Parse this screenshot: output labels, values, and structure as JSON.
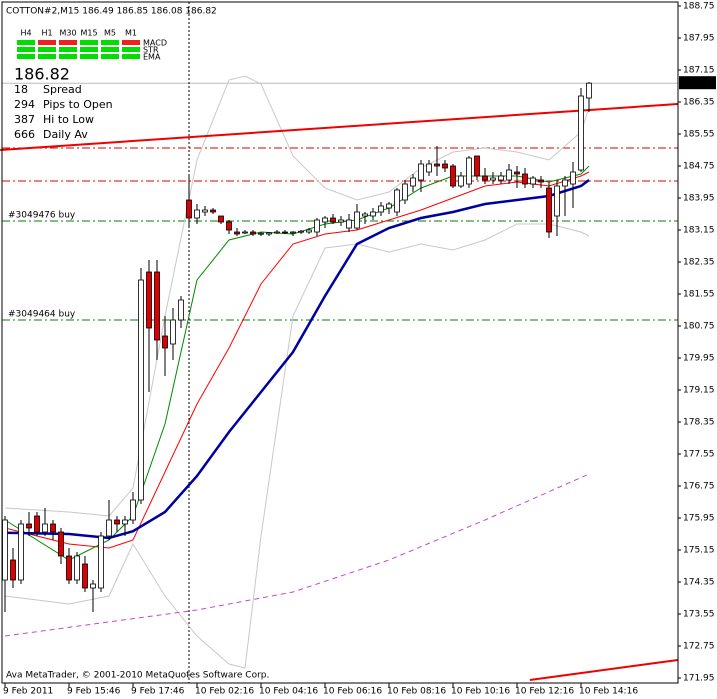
{
  "chart_data": {
    "type": "candlestick",
    "title": "COTTON#2,M15  186.49 186.85 186.08 186.82",
    "footer": "Ava MetaTrader, © 2001-2010 MetaQuotes Software Corp.",
    "categories": [
      "9 Feb 2011",
      null,
      null,
      null,
      null,
      null,
      null,
      null,
      "9 Feb 15:46",
      null,
      null,
      null,
      null,
      null,
      null,
      null,
      "9 Feb 17:46",
      null,
      null,
      null,
      null,
      null,
      null,
      null,
      "10 Feb 02:16",
      null,
      null,
      null,
      null,
      null,
      null,
      null,
      "10 Feb 04:16",
      null,
      null,
      null,
      null,
      null,
      null,
      null,
      "10 Feb 06:16",
      null,
      null,
      null,
      null,
      null,
      null,
      null,
      "10 Feb 08:16",
      null,
      null,
      null,
      null,
      null,
      null,
      null,
      "10 Feb 10:16",
      null,
      null,
      null,
      null,
      null,
      null,
      null,
      "10 Feb 12:16",
      null,
      null,
      null,
      null,
      null,
      null,
      null,
      "10 Feb 14:16",
      null
    ],
    "open": [
      174.4,
      174.9,
      174.4,
      175.8,
      176.0,
      175.6,
      175.8,
      175.6,
      175.0,
      174.4,
      174.8,
      174.2,
      174.2,
      175.5,
      175.9,
      175.8,
      175.9,
      176.4,
      182.1,
      182.1,
      180.5,
      180.3,
      180.9,
      183.9,
      183.45,
      183.6,
      183.65,
      183.5,
      183.35,
      183.1,
      183.1,
      183.1,
      183.05,
      183.05,
      183.1,
      183.1,
      183.08,
      183.1,
      183.1,
      183.1,
      183.35,
      183.45,
      183.35,
      183.2,
      183.2,
      183.5,
      183.5,
      183.6,
      183.7,
      183.6,
      183.9,
      184.25,
      184.4,
      184.6,
      184.8,
      184.8,
      184.75,
      184.25,
      184.3,
      185.0,
      184.5,
      184.4,
      184.4,
      184.4,
      184.6,
      184.55,
      184.3,
      184.4,
      184.2,
      183.5,
      184.25,
      184.3,
      184.65,
      186.45
    ],
    "high": [
      176.0,
      175.2,
      175.9,
      176.1,
      176.1,
      176.2,
      175.9,
      175.7,
      175.2,
      175.1,
      175.0,
      174.4,
      175.6,
      176.4,
      176.0,
      176.0,
      176.6,
      182.2,
      182.4,
      182.4,
      181.0,
      181.2,
      181.5,
      184.5,
      183.8,
      183.75,
      183.7,
      183.5,
      183.4,
      183.2,
      183.15,
      183.15,
      183.1,
      183.1,
      183.15,
      183.15,
      183.12,
      183.15,
      183.2,
      183.45,
      183.5,
      183.55,
      183.5,
      183.55,
      183.8,
      183.6,
      183.7,
      183.85,
      183.85,
      184.2,
      184.4,
      184.55,
      184.9,
      184.9,
      185.25,
      184.9,
      184.8,
      184.6,
      185.0,
      185.0,
      184.7,
      184.6,
      184.6,
      184.8,
      184.75,
      184.7,
      184.5,
      184.5,
      184.35,
      184.4,
      184.5,
      184.85,
      186.7,
      186.85
    ],
    "low": [
      173.6,
      174.2,
      174.3,
      175.5,
      175.5,
      175.5,
      175.4,
      174.8,
      174.3,
      174.3,
      174.1,
      173.6,
      174.1,
      175.4,
      175.6,
      175.5,
      175.8,
      176.3,
      179.1,
      179.9,
      179.5,
      179.9,
      180.7,
      183.2,
      183.3,
      183.5,
      183.55,
      183.3,
      183.05,
      183.0,
      183.05,
      183.0,
      183.0,
      183.0,
      183.05,
      183.05,
      183.0,
      183.05,
      183.05,
      183.0,
      183.2,
      183.3,
      183.25,
      183.1,
      183.15,
      183.3,
      183.4,
      183.5,
      183.55,
      183.5,
      183.8,
      184.1,
      184.1,
      184.5,
      184.5,
      184.6,
      184.2,
      184.2,
      184.2,
      184.4,
      184.3,
      184.3,
      184.3,
      184.3,
      184.2,
      184.2,
      184.2,
      184.2,
      182.95,
      183.0,
      183.5,
      183.7,
      184.6,
      186.1
    ],
    "close": [
      175.9,
      174.4,
      175.8,
      175.7,
      175.6,
      175.8,
      175.6,
      175.0,
      174.4,
      175.0,
      174.2,
      174.3,
      175.5,
      175.9,
      175.8,
      175.9,
      176.4,
      181.9,
      180.7,
      180.4,
      180.2,
      180.9,
      181.4,
      183.45,
      183.65,
      183.65,
      183.6,
      183.35,
      183.15,
      183.05,
      183.1,
      183.05,
      183.07,
      183.08,
      183.1,
      183.08,
      183.1,
      183.12,
      183.15,
      183.4,
      183.45,
      183.35,
      183.4,
      183.4,
      183.6,
      183.55,
      183.6,
      183.75,
      183.8,
      184.15,
      184.3,
      184.45,
      184.8,
      184.8,
      184.75,
      184.7,
      184.25,
      184.5,
      184.95,
      184.5,
      184.4,
      184.45,
      184.5,
      184.65,
      184.55,
      184.3,
      184.45,
      184.35,
      183.1,
      184.25,
      184.4,
      184.6,
      186.5,
      186.82
    ],
    "up_color": "#ffffff",
    "down_color": "#dd0000",
    "overlays": [
      {
        "color": "#c8c8c8",
        "width": 1,
        "x": [
          0,
          8,
          13,
          16,
          20,
          24,
          28,
          30,
          32,
          36,
          40,
          44,
          48,
          52,
          56,
          60,
          64,
          68,
          72,
          73
        ],
        "values": [
          176.2,
          176.1,
          176.0,
          176.7,
          181.0,
          184.9,
          186.9,
          187.0,
          186.8,
          185.0,
          184.2,
          183.9,
          184.1,
          184.7,
          185.1,
          185.2,
          185.1,
          184.9,
          185.6,
          186.2
        ]
      },
      {
        "color": "#c8c8c8",
        "width": 1,
        "x": [
          0,
          8,
          13,
          16,
          20,
          24,
          28,
          30,
          32,
          36,
          40,
          44,
          48,
          52,
          56,
          60,
          64,
          68,
          72,
          73
        ],
        "values": [
          174.0,
          173.8,
          174.0,
          175.3,
          174.0,
          173.0,
          172.3,
          172.2,
          175.5,
          181.0,
          182.7,
          182.8,
          182.6,
          182.8,
          182.65,
          182.9,
          183.3,
          183.3,
          183.1,
          183.0
        ]
      },
      {
        "color": "#cc44cc",
        "width": 1,
        "dash": true,
        "x": [
          0,
          24,
          36,
          48,
          60,
          73
        ],
        "values": [
          173.0,
          173.65,
          174.1,
          174.9,
          175.9,
          177.05
        ]
      },
      {
        "color": "#ff0000",
        "width": 1,
        "x": [
          0,
          8,
          13,
          16,
          20,
          24,
          28,
          32,
          36,
          40,
          44,
          48,
          52,
          56,
          60,
          64,
          68,
          72,
          73
        ],
        "values": [
          175.7,
          175.3,
          175.2,
          175.4,
          177.1,
          178.8,
          180.2,
          181.8,
          182.8,
          183.05,
          183.15,
          183.4,
          183.65,
          183.95,
          184.25,
          184.35,
          184.25,
          184.5,
          184.6
        ]
      },
      {
        "color": "#008800",
        "width": 1,
        "x": [
          0,
          8,
          13,
          16,
          20,
          24,
          28,
          32,
          36,
          40,
          44,
          48,
          52,
          56,
          60,
          64,
          68,
          72,
          73
        ],
        "values": [
          175.9,
          174.9,
          175.4,
          176.0,
          178.3,
          181.9,
          182.9,
          183.1,
          183.05,
          183.3,
          183.4,
          183.7,
          184.2,
          184.5,
          184.5,
          184.5,
          184.35,
          184.55,
          184.75
        ]
      },
      {
        "color": "#0000a0",
        "width": 2.5,
        "x": [
          0,
          8,
          13,
          16,
          20,
          24,
          28,
          32,
          36,
          40,
          44,
          48,
          52,
          56,
          60,
          64,
          68,
          72,
          73
        ],
        "values": [
          175.58,
          175.55,
          175.45,
          175.62,
          176.1,
          177.0,
          178.1,
          179.1,
          180.1,
          181.5,
          182.8,
          183.2,
          183.45,
          183.6,
          183.8,
          183.9,
          184.0,
          184.25,
          184.4
        ]
      }
    ],
    "levels": [
      185.2,
      184.375
    ],
    "level_color": "#dd0000",
    "orders": [
      {
        "label": "#3049476 buy",
        "price": 183.375
      },
      {
        "label": "#3049464 buy",
        "price": 180.9
      }
    ],
    "order_color": "#008000",
    "trendlines": [
      {
        "x": [
          -0.6,
          84.1
        ],
        "values": [
          185.15,
          186.3
        ]
      },
      {
        "x": [
          65.6,
          84.1
        ],
        "values": [
          171.9,
          172.4
        ]
      }
    ],
    "trend_color": "#ee0000",
    "crosshair_x": 23,
    "last_price": 186.82,
    "ylim": [
      171.825,
      188.85
    ],
    "yticks": [
      188.75,
      187.95,
      187.15,
      186.35,
      185.55,
      184.75,
      183.95,
      183.15,
      182.35,
      181.55,
      180.75,
      179.95,
      179.15,
      178.35,
      177.55,
      176.75,
      175.95,
      175.15,
      174.35,
      173.55,
      172.75,
      171.95
    ]
  },
  "panel": {
    "timeframes": [
      "H4",
      "H1",
      "M30",
      "M15",
      "M5",
      "M1"
    ],
    "indicators": [
      "MACD",
      "STR",
      "EMA"
    ],
    "signals": [
      [
        "#00dd00",
        "#ee2020",
        "#ee2020",
        "#00dd00",
        "#00dd00",
        "#ee2020"
      ],
      [
        "#00dd00",
        "#00dd00",
        "#00dd00",
        "#00dd00",
        "#00dd00",
        "#00dd00"
      ],
      [
        "#00dd00",
        "#00dd00",
        "#00dd00",
        "#00dd00",
        "#00dd00",
        "#00dd00"
      ]
    ],
    "price": 186.82,
    "price_color": "#22dd22",
    "stats": [
      {
        "value": 18,
        "label": "Spread",
        "color": "#f0b000"
      },
      {
        "value": 294,
        "label": "Pips to Open",
        "color": "#22bb22"
      },
      {
        "value": 387,
        "label": "Hi to Low",
        "color": "#f0a000"
      },
      {
        "value": 666,
        "label": "Daily Av",
        "color": "#ff5522"
      }
    ],
    "label_color": "#a8b0d0"
  }
}
